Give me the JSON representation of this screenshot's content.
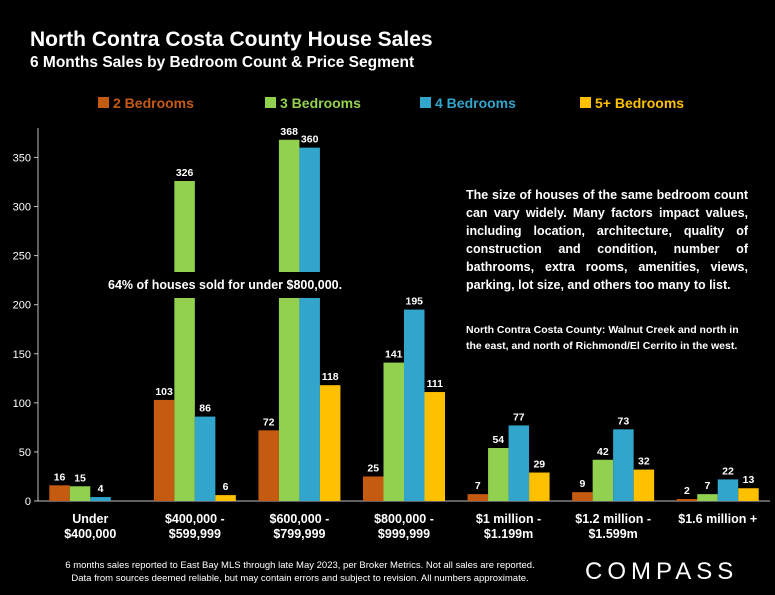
{
  "header": {
    "title": "North Contra Costa County House Sales",
    "subtitle": "6 Months Sales by Bedroom Count & Price Segment"
  },
  "notes": {
    "main": "The size of houses of the same bedroom count can vary widely. Many factors impact values, including location, architecture, quality of construction and condition, number of bathrooms, extra rooms, amenities, views, parking, lot size, and others too many to list.",
    "region": "North Contra Costa County: Walnut Creek and north in the east, and north of Richmond/El Cerrito in the west.",
    "callout": "64% of houses sold for under $800,000."
  },
  "footer": {
    "line1": "6 months sales reported to East Bay MLS through late May 2023, per Broker Metrics. Not all sales are reported.",
    "line2": "Data from sources deemed reliable, but may contain errors and subject to revision. All numbers approximate.",
    "logo": "COMPASS"
  },
  "chart_data": {
    "type": "bar",
    "categories": [
      [
        "Under",
        "$400,000"
      ],
      [
        "$400,000 -",
        "$599,999"
      ],
      [
        "$600,000 -",
        "$799,999"
      ],
      [
        "$800,000 -",
        "$999,999"
      ],
      [
        "$1 million -",
        "$1.199m"
      ],
      [
        "$1.2 million -",
        "$1.599m"
      ],
      [
        "$1.6 million +"
      ]
    ],
    "series": [
      {
        "name": "2 Bedrooms",
        "color": "#C55A11",
        "values": [
          16,
          103,
          72,
          25,
          7,
          9,
          2
        ]
      },
      {
        "name": "3 Bedrooms",
        "color": "#92D050",
        "values": [
          15,
          326,
          368,
          141,
          54,
          42,
          7
        ]
      },
      {
        "name": "4 Bedrooms",
        "color": "#31A5CC",
        "values": [
          4,
          86,
          360,
          195,
          77,
          73,
          22
        ]
      },
      {
        "name": "5+ Bedrooms",
        "color": "#FFC000",
        "values": [
          null,
          6,
          118,
          111,
          29,
          32,
          13
        ]
      }
    ],
    "yticks": [
      0,
      50,
      100,
      150,
      200,
      250,
      300,
      350
    ],
    "ylim": [
      0,
      380
    ],
    "grid": false,
    "legend": "top"
  }
}
